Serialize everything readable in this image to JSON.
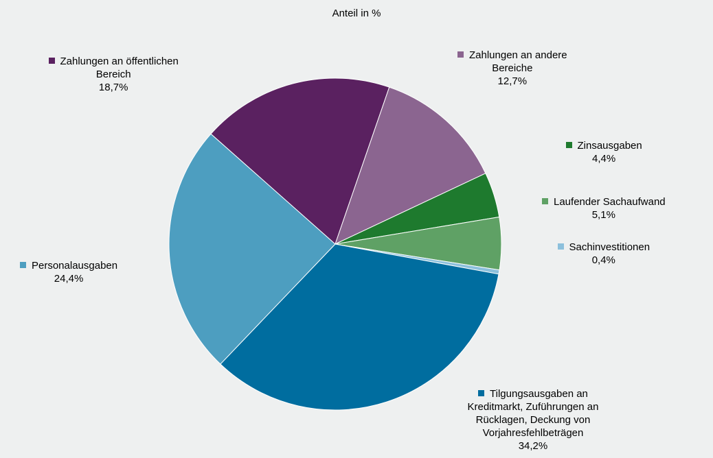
{
  "chart_data": {
    "type": "pie",
    "title": "Anteil in %",
    "slices": [
      {
        "name": "Zahlungen an öffentlichen Bereich",
        "lines": [
          "Zahlungen an öffentlichen",
          "Bereich"
        ],
        "value": 18.7,
        "value_label": "18,7%",
        "color": "#5a2160"
      },
      {
        "name": "Zahlungen an andere Bereiche",
        "lines": [
          "Zahlungen an andere",
          "Bereiche"
        ],
        "value": 12.7,
        "value_label": "12,7%",
        "color": "#8b6590"
      },
      {
        "name": "Zinsausgaben",
        "lines": [
          "Zinsausgaben"
        ],
        "value": 4.4,
        "value_label": "4,4%",
        "color": "#1e7a2e"
      },
      {
        "name": "Laufender Sachaufwand",
        "lines": [
          "Laufender Sachaufwand"
        ],
        "value": 5.1,
        "value_label": "5,1%",
        "color": "#5fa165"
      },
      {
        "name": "Sachinvestitionen",
        "lines": [
          "Sachinvestitionen"
        ],
        "value": 0.4,
        "value_label": "0,4%",
        "color": "#8cc0dc"
      },
      {
        "name": "Tilgungsausgaben an Kreditmarkt, Zuführungen an Rücklagen, Deckung von Vorjahresfehlbeträgen",
        "lines": [
          "Tilgungsausgaben an",
          "Kreditmarkt, Zuführungen an",
          "Rücklagen, Deckung von",
          "Vorjahresfehlbeträgen"
        ],
        "value": 34.2,
        "value_label": "34,2%",
        "color": "#006d9f"
      },
      {
        "name": "Personalausgaben",
        "lines": [
          "Personalausgaben"
        ],
        "value": 24.4,
        "value_label": "24,4%",
        "color": "#4d9ec0"
      }
    ],
    "legend_placement": "around-pie"
  }
}
